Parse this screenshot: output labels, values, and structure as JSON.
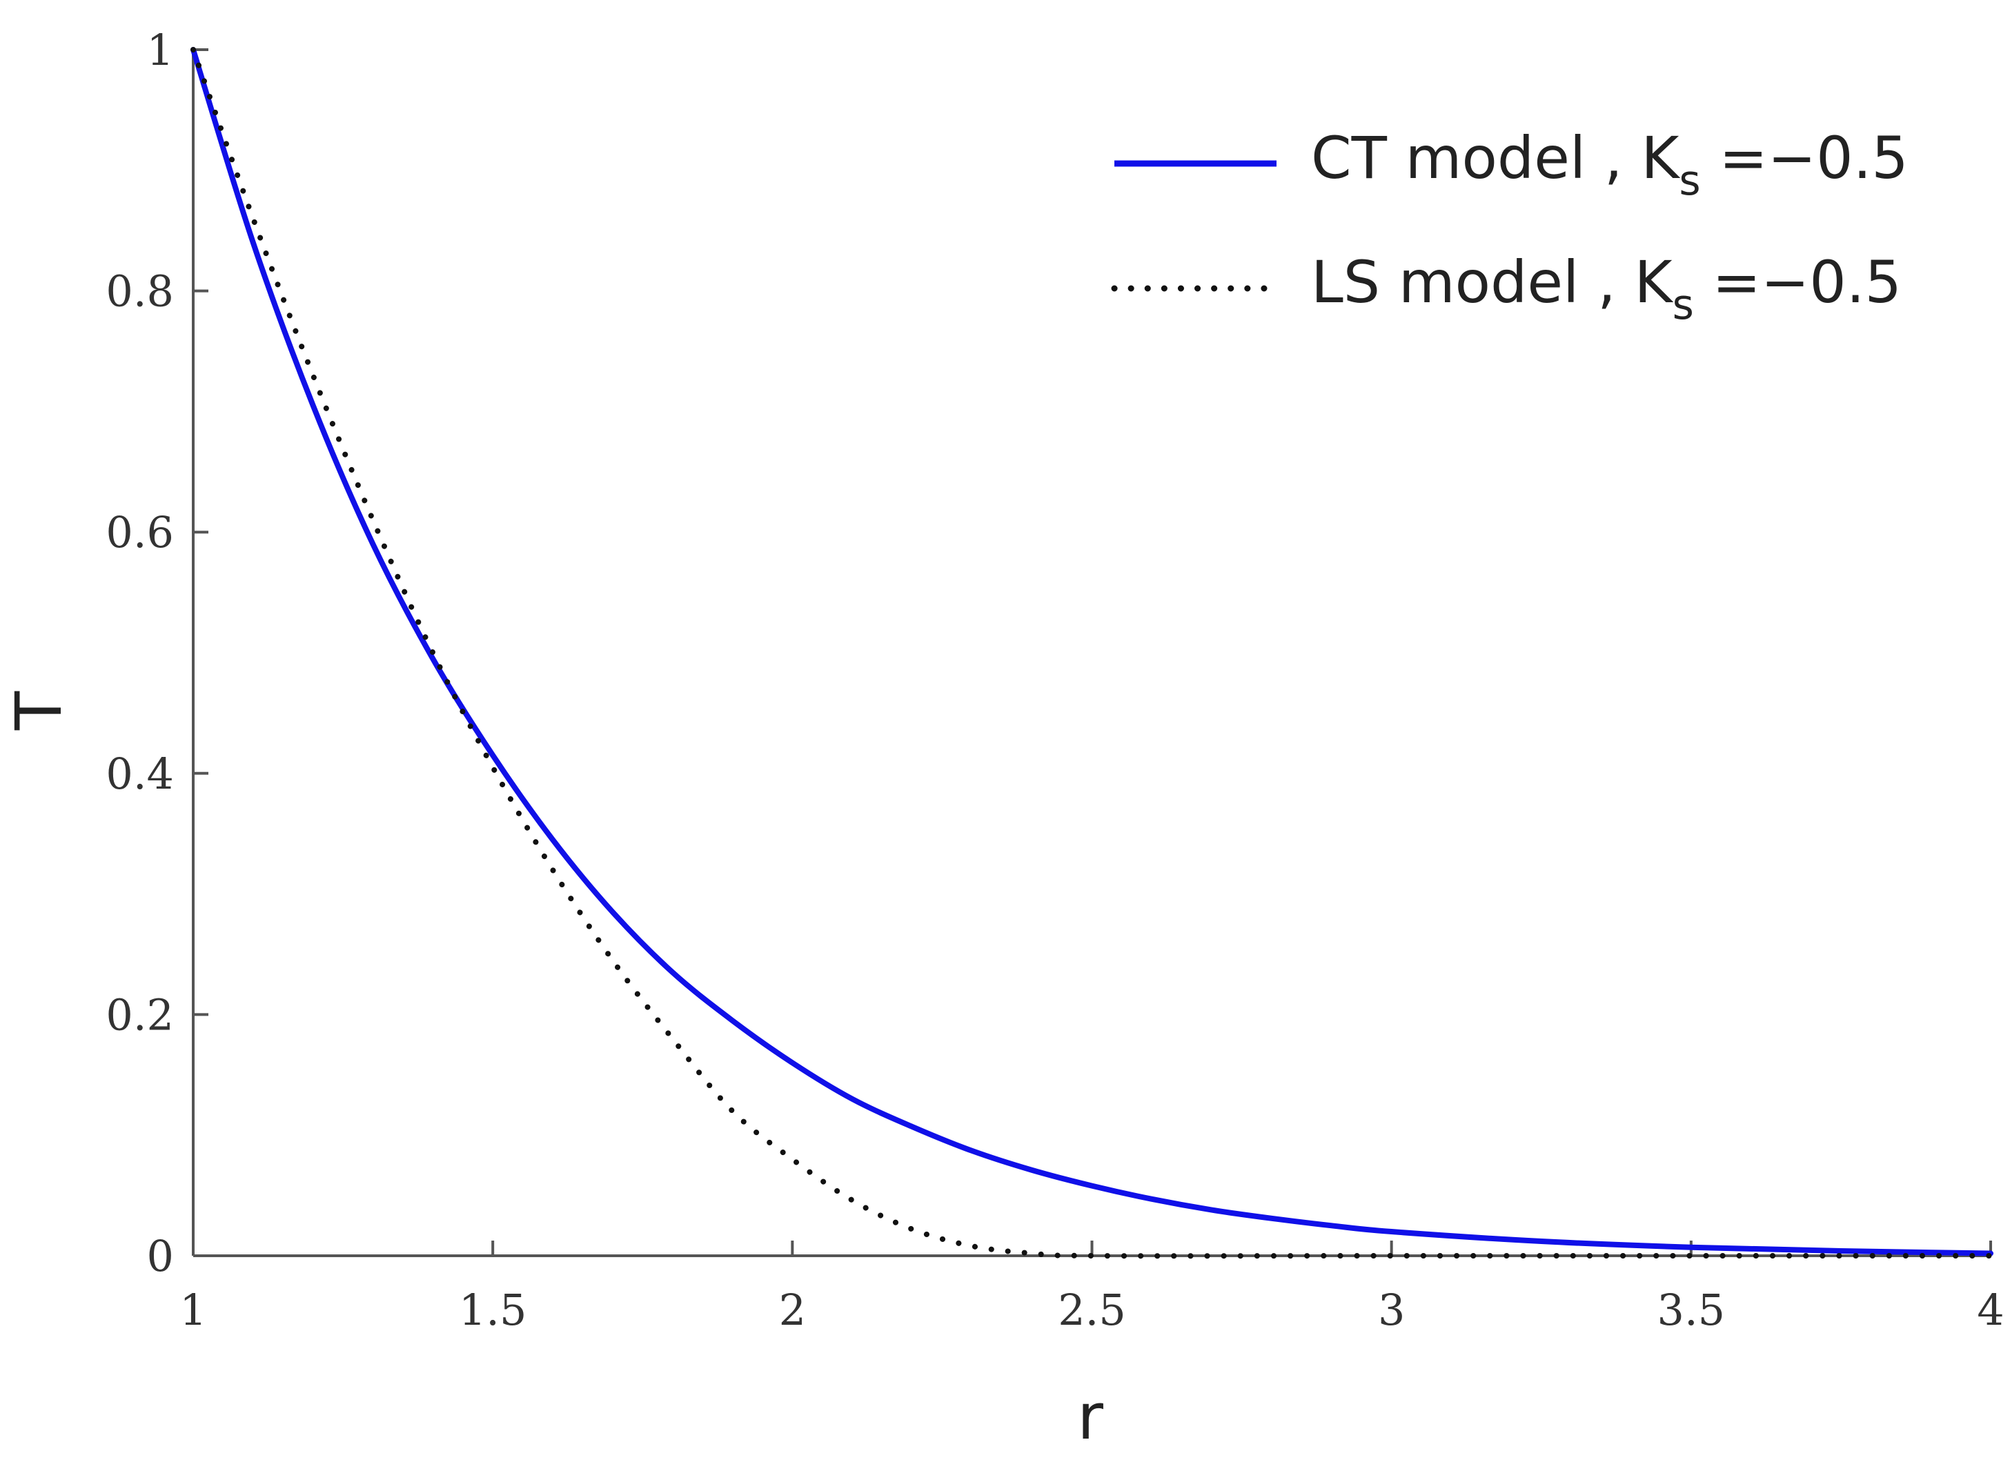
{
  "chart_data": {
    "type": "line",
    "xlabel": "r",
    "ylabel": "T",
    "xlim": [
      1,
      4
    ],
    "ylim": [
      0,
      1
    ],
    "x_ticks": [
      "1",
      "1.5",
      "2",
      "2.5",
      "3",
      "3.5",
      "4"
    ],
    "y_ticks": [
      "0",
      "0.2",
      "0.4",
      "0.6",
      "0.8",
      "1"
    ],
    "grid": false,
    "legend_position": "top-right",
    "colors": {
      "CT model": "#1010e8",
      "LS model": "#111111"
    },
    "series": [
      {
        "name_main": "CT model , K",
        "name_sub": "s",
        "name_tail": " =−0.5",
        "style": "solid",
        "x": [
          1.0,
          1.1,
          1.2,
          1.3,
          1.4,
          1.5,
          1.6,
          1.7,
          1.8,
          1.9,
          2.0,
          2.1,
          2.2,
          2.3,
          2.4,
          2.5,
          2.6,
          2.7,
          2.8,
          2.9,
          3.0,
          3.25,
          3.5,
          3.75,
          4.0
        ],
        "y": [
          1.0,
          0.84,
          0.705,
          0.59,
          0.495,
          0.415,
          0.345,
          0.285,
          0.235,
          0.195,
          0.16,
          0.13,
          0.107,
          0.087,
          0.071,
          0.058,
          0.047,
          0.038,
          0.031,
          0.025,
          0.02,
          0.012,
          0.007,
          0.004,
          0.002
        ]
      },
      {
        "name_main": "LS model , K",
        "name_sub": "s",
        "name_tail": " =−0.5",
        "style": "dotted",
        "x": [
          1.0,
          1.1,
          1.2,
          1.3,
          1.4,
          1.5,
          1.6,
          1.7,
          1.8,
          1.9,
          2.0,
          2.1,
          2.2,
          2.3,
          2.4,
          2.5,
          3.0,
          3.5,
          4.0
        ],
        "y": [
          1.0,
          0.86,
          0.73,
          0.61,
          0.5,
          0.405,
          0.32,
          0.245,
          0.18,
          0.12,
          0.08,
          0.046,
          0.022,
          0.008,
          0.002,
          0.0,
          0.0,
          0.0,
          0.0
        ]
      }
    ]
  }
}
